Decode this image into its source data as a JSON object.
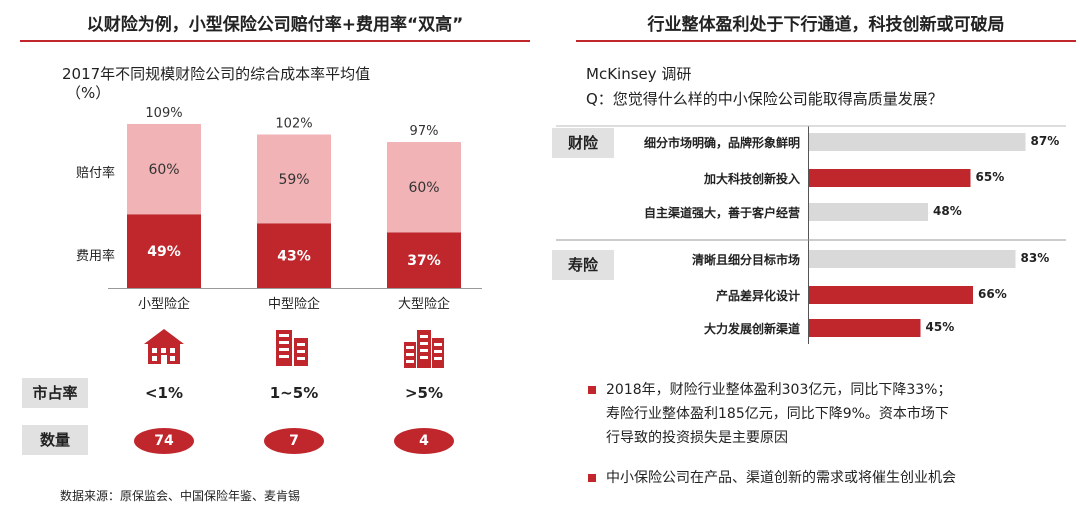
{
  "left": {
    "title": "以财险为例，小型保险公司赔付率+费用率“双高”",
    "chart_title": "2017年不同规模财险公司的综合成本率平均值",
    "chart_unit": "（%）",
    "row_label_top": "赔付率",
    "row_label_bottom": "费用率",
    "market_share_label": "市占率",
    "count_label": "数量",
    "source": "数据来源：原保监会、中国保险年鉴、麦肯锡"
  },
  "chart_data": [
    {
      "type": "bar",
      "stacked": true,
      "title": "2017年不同规模财险公司的综合成本率平均值",
      "unit": "（%）",
      "categories": [
        "小型险企",
        "中型险企",
        "大型险企"
      ],
      "totals": [
        "109%",
        "102%",
        "97%"
      ],
      "series": [
        {
          "name": "费用率",
          "values": [
            49,
            43,
            37
          ],
          "labels": [
            "49%",
            "43%",
            "37%"
          ],
          "color": "#c0272d"
        },
        {
          "name": "赔付率",
          "values": [
            60,
            59,
            60
          ],
          "labels": [
            "60%",
            "59%",
            "60%"
          ],
          "color": "#f1b3b6"
        }
      ],
      "market_share": [
        "<1%",
        "1~5%",
        ">5%"
      ],
      "counts": [
        "74",
        "7",
        "4"
      ],
      "icons": [
        "house-icon",
        "building-icon",
        "office-tower-icon"
      ],
      "ylim": [
        0,
        115
      ]
    },
    {
      "type": "bar",
      "orientation": "horizontal",
      "title": "Q：您觉得什么样的中小保险公司能取得高质量发展？",
      "xlim": [
        0,
        100
      ],
      "groups": [
        {
          "name": "财险",
          "items": [
            {
              "label": "细分市场明确，品牌形象鲜明",
              "value": 87,
              "value_label": "87%",
              "color": "#d9d9d9"
            },
            {
              "label": "加大科技创新投入",
              "value": 65,
              "value_label": "65%",
              "color": "#c0272d"
            },
            {
              "label": "自主渠道强大，善于客户经营",
              "value": 48,
              "value_label": "48%",
              "color": "#d9d9d9"
            }
          ]
        },
        {
          "name": "寿险",
          "items": [
            {
              "label": "清晰且细分目标市场",
              "value": 83,
              "value_label": "83%",
              "color": "#d9d9d9"
            },
            {
              "label": "产品差异化设计",
              "value": 66,
              "value_label": "66%",
              "color": "#c0272d"
            },
            {
              "label": "大力发展创新渠道",
              "value": 45,
              "value_label": "45%",
              "color": "#c0272d"
            }
          ]
        }
      ]
    }
  ],
  "right": {
    "title": "行业整体盈利处于下行通道，科技创新或可破局",
    "survey_source": "McKinsey 调研",
    "question": "Q：您觉得什么样的中小保险公司能取得高质量发展？",
    "bullets": [
      {
        "lines": [
          "2018年，财险行业整体盈利303亿元，同比下降33%；",
          "寿险行业整体盈利185亿元，同比下降9%。资本市场下",
          "行导致的投资损失是主要原因"
        ]
      },
      {
        "lines": [
          "中小保险公司在产品、渠道创新的需求或将催生创业机会"
        ]
      }
    ]
  }
}
